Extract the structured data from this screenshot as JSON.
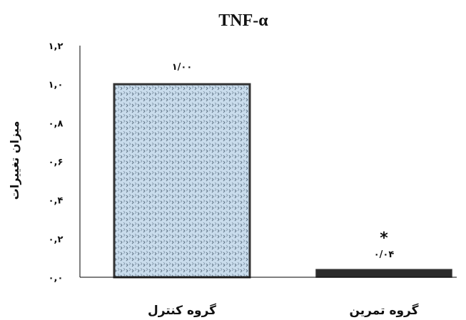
{
  "chart_data": {
    "type": "bar",
    "title": "TNF-α",
    "xlabel": "",
    "ylabel": "میزان تغییرات",
    "ylim": [
      0,
      1.2
    ],
    "yticks": [
      0,
      0.2,
      0.4,
      0.6,
      0.8,
      1.0,
      1.2
    ],
    "ytick_labels": [
      "۰,۰",
      "۰,۲",
      "۰,۴",
      "۰,۶",
      "۰,۸",
      "۱,۰",
      "۱,۲"
    ],
    "categories": [
      "گروه کنترل",
      "گروه تمرین"
    ],
    "values": [
      1.0,
      0.04
    ],
    "data_labels": [
      "۱/۰۰",
      "۰/۰۴"
    ],
    "annotations": [
      "",
      "*"
    ],
    "grid": false,
    "colors": {
      "control_fill": "#c9dcec",
      "control_pattern": "#5a6e80",
      "exercise_fill": "#2b2b2b",
      "bar_edge": "#333333",
      "axis": "#000000"
    }
  }
}
